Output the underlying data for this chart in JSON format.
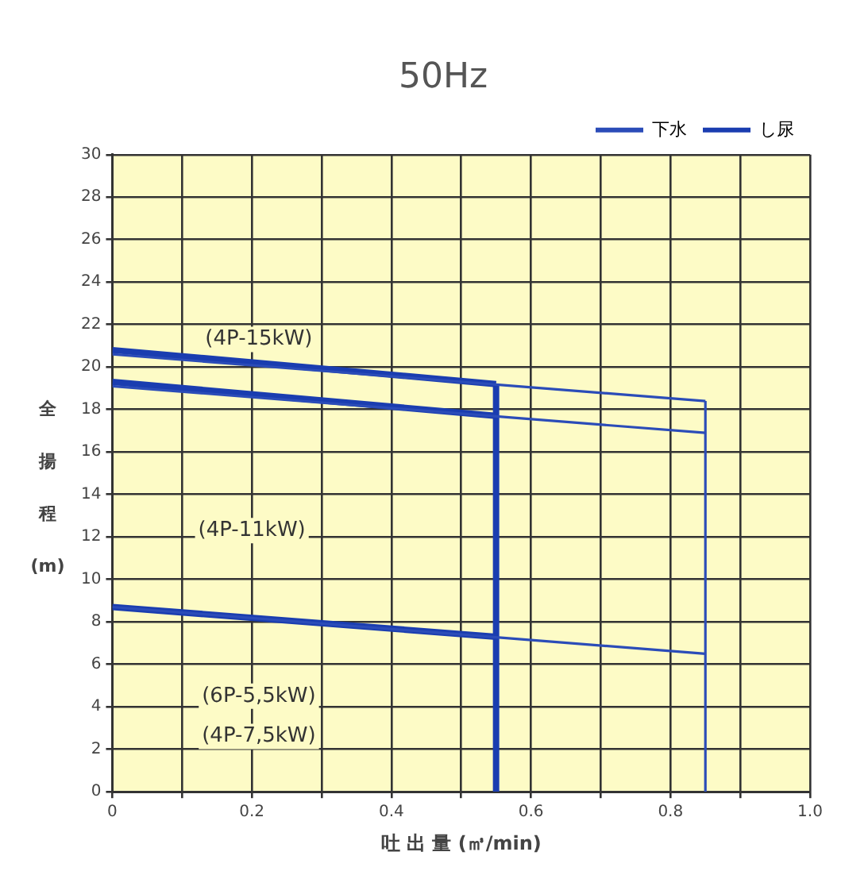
{
  "chart_data": {
    "type": "line",
    "title": "50Hz",
    "xlabel": "吐 出 量 (㎥/min)",
    "ylabel": "全揚程(m)",
    "xlim": [
      0,
      1.0
    ],
    "ylim": [
      0,
      30
    ],
    "xticks": [
      0,
      {
        "value": 0.1,
        "label": null
      },
      0.2,
      {
        "value": 0.3,
        "label": null
      },
      0.4,
      {
        "value": 0.5,
        "label": null
      },
      0.6,
      {
        "value": 0.7,
        "label": null
      },
      0.8,
      {
        "value": 0.9,
        "label": null
      },
      {
        "value": 1.0,
        "label": "1.0"
      }
    ],
    "yticks": [
      0,
      2,
      4,
      6,
      8,
      10,
      12,
      14,
      16,
      18,
      20,
      22,
      24,
      26,
      28,
      30
    ],
    "grid": true,
    "legend": "top right",
    "marker": "none",
    "line_style": "solid",
    "series": [
      {
        "name": "下水",
        "color": "#2b4cb8",
        "x": [
          0,
          0.85
        ],
        "values": [
          20.6,
          18.4
        ]
      },
      {
        "color": "#2b4cb8",
        "x": [
          0,
          0.85
        ],
        "values": [
          19.1,
          16.9
        ]
      },
      {
        "color": "#2b4cb8",
        "x": [
          0,
          0.85
        ],
        "values": [
          8.7,
          6.5
        ]
      },
      {
        "color": "#2b4cb8",
        "x": [
          0.85,
          0.85
        ],
        "values": [
          0,
          18.4
        ]
      },
      {
        "name": "し尿",
        "color": "#1a3db0",
        "x": [
          0,
          0.55
        ],
        "values": [
          20.8,
          19.2
        ]
      },
      {
        "color": "#1a3db0",
        "x": [
          0,
          0.55
        ],
        "values": [
          19.3,
          17.7
        ]
      },
      {
        "color": "#1a3db0",
        "x": [
          0,
          0.55
        ],
        "values": [
          8.7,
          7.3
        ]
      },
      {
        "color": "#1a3db0",
        "x": [
          0.55,
          0.55
        ],
        "values": [
          0,
          19.2
        ]
      }
    ],
    "annotations": [
      "(4P-15kW)",
      "(4P-11kW)",
      "(6P-5,5kW)",
      "(4P-7,5kW)"
    ]
  }
}
